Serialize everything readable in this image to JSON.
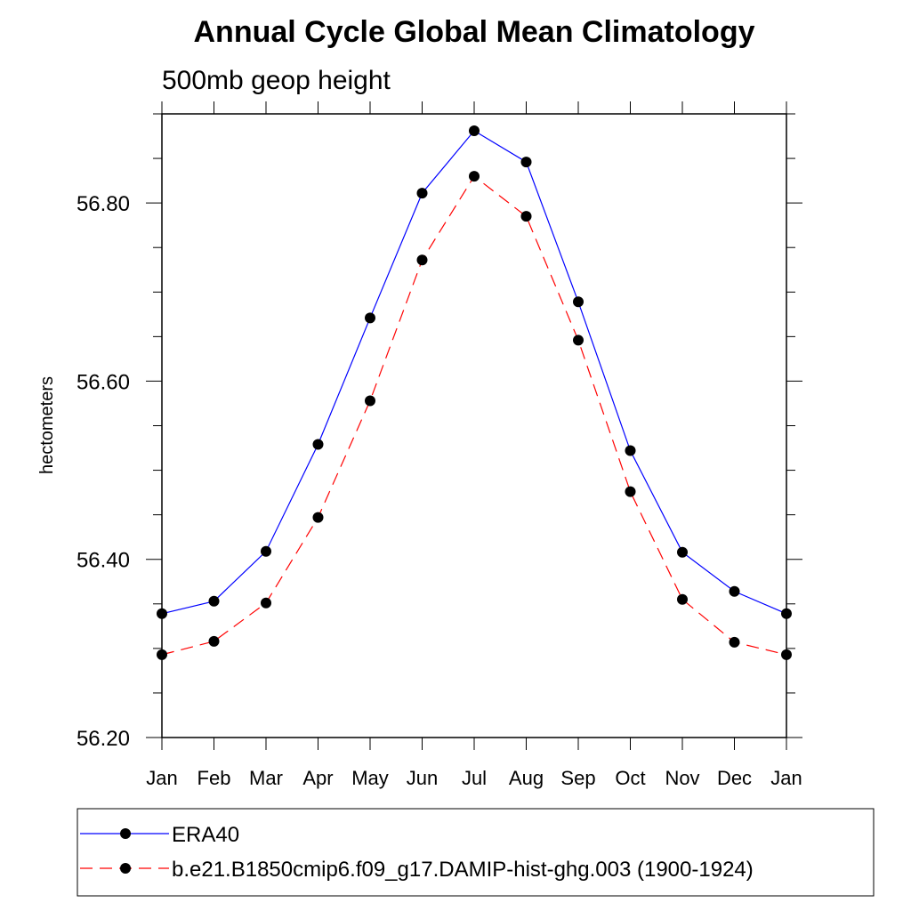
{
  "chart_data": {
    "type": "line",
    "title": "Annual Cycle Global Mean Climatology",
    "subtitle": "500mb geop height",
    "xlabel": "",
    "ylabel": "hectometers",
    "categories": [
      "Jan",
      "Feb",
      "Mar",
      "Apr",
      "May",
      "Jun",
      "Jul",
      "Aug",
      "Sep",
      "Oct",
      "Nov",
      "Dec",
      "Jan"
    ],
    "ylim": [
      56.2,
      56.9
    ],
    "yticks": [
      56.2,
      56.4,
      56.6,
      56.8
    ],
    "ytick_labels": [
      "56.20",
      "56.40",
      "56.60",
      "56.80"
    ],
    "series": [
      {
        "name": "ERA40",
        "color": "#0000ff",
        "dash": "solid",
        "values": [
          56.339,
          56.353,
          56.409,
          56.529,
          56.671,
          56.811,
          56.881,
          56.846,
          56.689,
          56.522,
          56.408,
          56.364,
          56.339
        ]
      },
      {
        "name": "b.e21.B1850cmip6.f09_g17.DAMIP-hist-ghg.003 (1900-1924)",
        "color": "#ff0000",
        "dash": "dashed",
        "values": [
          56.293,
          56.308,
          56.351,
          56.447,
          56.578,
          56.736,
          56.83,
          56.785,
          56.646,
          56.476,
          56.355,
          56.307,
          56.293
        ]
      }
    ],
    "legend_position": "bottom"
  }
}
